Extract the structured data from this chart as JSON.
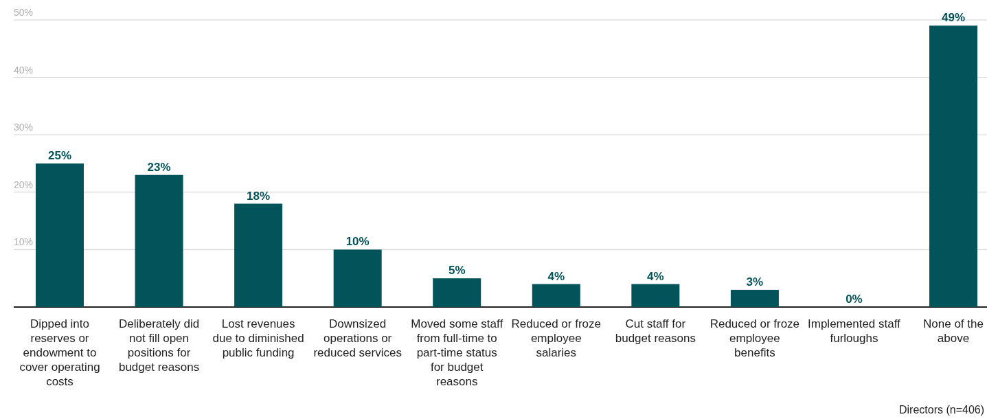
{
  "chart_data": {
    "type": "bar",
    "categories": [
      "Dipped into reserves or endowment to cover operating costs",
      "Deliberately did not fill open positions for budget reasons",
      "Lost revenues due to diminished public funding",
      "Downsized operations or reduced services",
      "Moved some staff from full-time to part-time status for budget reasons",
      "Reduced or froze employee salaries",
      "Cut staff for budget reasons",
      "Reduced or froze employee benefits",
      "Implemented staff furloughs",
      "None of the above"
    ],
    "values": [
      25,
      23,
      18,
      10,
      5,
      4,
      4,
      3,
      0,
      49
    ],
    "value_labels": [
      "25%",
      "23%",
      "18%",
      "10%",
      "5%",
      "4%",
      "4%",
      "3%",
      "0%",
      "49%"
    ],
    "color": "#02535a",
    "ylim": [
      0,
      50
    ],
    "yticks": [
      {
        "value": 0,
        "label": null
      },
      {
        "value": 10,
        "label": "10%"
      },
      {
        "value": 20,
        "label": "20%"
      },
      {
        "value": 30,
        "label": "30%"
      },
      {
        "value": 40,
        "label": "40%"
      },
      {
        "value": 50,
        "label": "50%"
      }
    ],
    "grid": "y",
    "annotations": [
      "Directors (n=406)"
    ]
  }
}
